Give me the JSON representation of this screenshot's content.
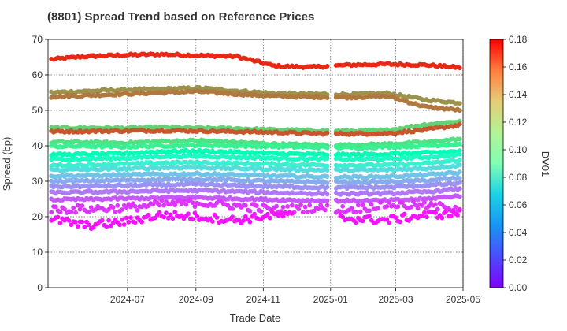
{
  "chart_data": {
    "type": "scatter",
    "title": "(8801)   Spread Trend based on Reference Prices",
    "xlabel": "Trade Date",
    "ylabel": "Spread (bp)",
    "ylim": [
      0,
      70
    ],
    "xlim": [
      "2024-04-20",
      "2025-05-01"
    ],
    "x_ticks": [
      "2024-07",
      "2024-09",
      "2024-11",
      "2025-01",
      "2025-03",
      "2025-05"
    ],
    "y_ticks": [
      0,
      10,
      20,
      30,
      40,
      50,
      60,
      70
    ],
    "grid": true,
    "colorbar": {
      "label": "DV01",
      "range": [
        0.0,
        0.18
      ],
      "ticks": [
        "0.00",
        "0.02",
        "0.04",
        "0.06",
        "0.08",
        "0.10",
        "0.12",
        "0.14",
        "0.16",
        "0.18"
      ],
      "colormap": "rainbow"
    },
    "series": [
      {
        "dv01": 0.171,
        "y": [
          64.3,
          65.2,
          65.6,
          65.8,
          65.5,
          65.2,
          62.5,
          62.2,
          62.8,
          63.0,
          62.8,
          62.0
        ]
      },
      {
        "dv01": 0.145,
        "y": [
          55.0,
          55.4,
          55.8,
          56.0,
          56.3,
          55.5,
          54.8,
          54.6,
          54.5,
          54.8,
          53.0,
          52.0
        ]
      },
      {
        "dv01": 0.152,
        "y": [
          53.8,
          54.2,
          54.6,
          55.0,
          55.3,
          54.6,
          54.0,
          53.8,
          53.7,
          54.0,
          51.0,
          50.0
        ]
      },
      {
        "dv01": 0.125,
        "y": [
          45.0,
          45.1,
          45.0,
          45.2,
          45.0,
          44.9,
          44.5,
          44.3,
          44.2,
          44.4,
          46.0,
          47.0
        ]
      },
      {
        "dv01": 0.16,
        "y": [
          44.0,
          44.1,
          44.2,
          44.3,
          44.2,
          44.0,
          43.8,
          43.5,
          43.4,
          43.5,
          44.5,
          46.0
        ]
      },
      {
        "dv01": 0.118,
        "y": [
          41.0,
          41.0,
          40.8,
          41.2,
          41.5,
          41.0,
          40.5,
          40.3,
          40.2,
          40.5,
          41.0,
          42.0
        ]
      },
      {
        "dv01": 0.11,
        "y": [
          39.8,
          39.9,
          39.7,
          40.0,
          40.2,
          40.0,
          39.8,
          39.6,
          39.5,
          39.7,
          40.0,
          40.5
        ]
      },
      {
        "dv01": 0.09,
        "y": [
          37.5,
          37.6,
          37.8,
          38.4,
          38.5,
          38.2,
          37.8,
          37.6,
          37.5,
          37.7,
          38.0,
          38.5
        ]
      },
      {
        "dv01": 0.08,
        "y": [
          36.2,
          36.3,
          36.5,
          37.0,
          37.1,
          36.8,
          36.5,
          36.3,
          36.2,
          36.3,
          36.8,
          37.5
        ]
      },
      {
        "dv01": 0.07,
        "y": [
          34.5,
          34.6,
          34.8,
          35.2,
          35.3,
          35.0,
          34.8,
          34.6,
          34.5,
          34.6,
          35.0,
          36.0
        ]
      },
      {
        "dv01": 0.06,
        "y": [
          33.2,
          33.3,
          33.5,
          33.8,
          33.9,
          33.6,
          33.4,
          33.2,
          33.1,
          33.2,
          33.6,
          34.5
        ]
      },
      {
        "dv01": 0.05,
        "y": [
          31.5,
          31.6,
          31.8,
          32.0,
          32.1,
          31.8,
          31.5,
          31.3,
          31.2,
          31.3,
          31.8,
          32.5
        ]
      },
      {
        "dv01": 0.042,
        "y": [
          30.0,
          30.1,
          30.3,
          30.5,
          30.6,
          30.3,
          30.0,
          29.8,
          29.7,
          29.8,
          30.2,
          31.0
        ]
      },
      {
        "dv01": 0.035,
        "y": [
          28.5,
          28.6,
          28.8,
          29.0,
          29.1,
          28.8,
          28.5,
          28.3,
          28.2,
          28.3,
          28.8,
          29.5
        ]
      },
      {
        "dv01": 0.028,
        "y": [
          26.8,
          26.9,
          27.1,
          27.3,
          27.4,
          27.1,
          26.8,
          26.6,
          26.5,
          26.6,
          27.0,
          28.0
        ]
      },
      {
        "dv01": 0.02,
        "y": [
          24.8,
          24.9,
          25.1,
          25.3,
          25.4,
          25.1,
          24.8,
          24.6,
          24.5,
          24.6,
          25.0,
          26.0
        ]
      },
      {
        "dv01": 0.012,
        "y": [
          22.0,
          22.2,
          22.5,
          23.5,
          24.0,
          23.0,
          22.0,
          22.5,
          22.0,
          23.5,
          23.0,
          22.5
        ]
      },
      {
        "dv01": 0.004,
        "y": [
          19.5,
          17.5,
          18.5,
          20.5,
          20.0,
          19.0,
          20.5,
          20.0,
          19.5,
          19.0,
          20.5,
          21.0
        ]
      }
    ]
  }
}
